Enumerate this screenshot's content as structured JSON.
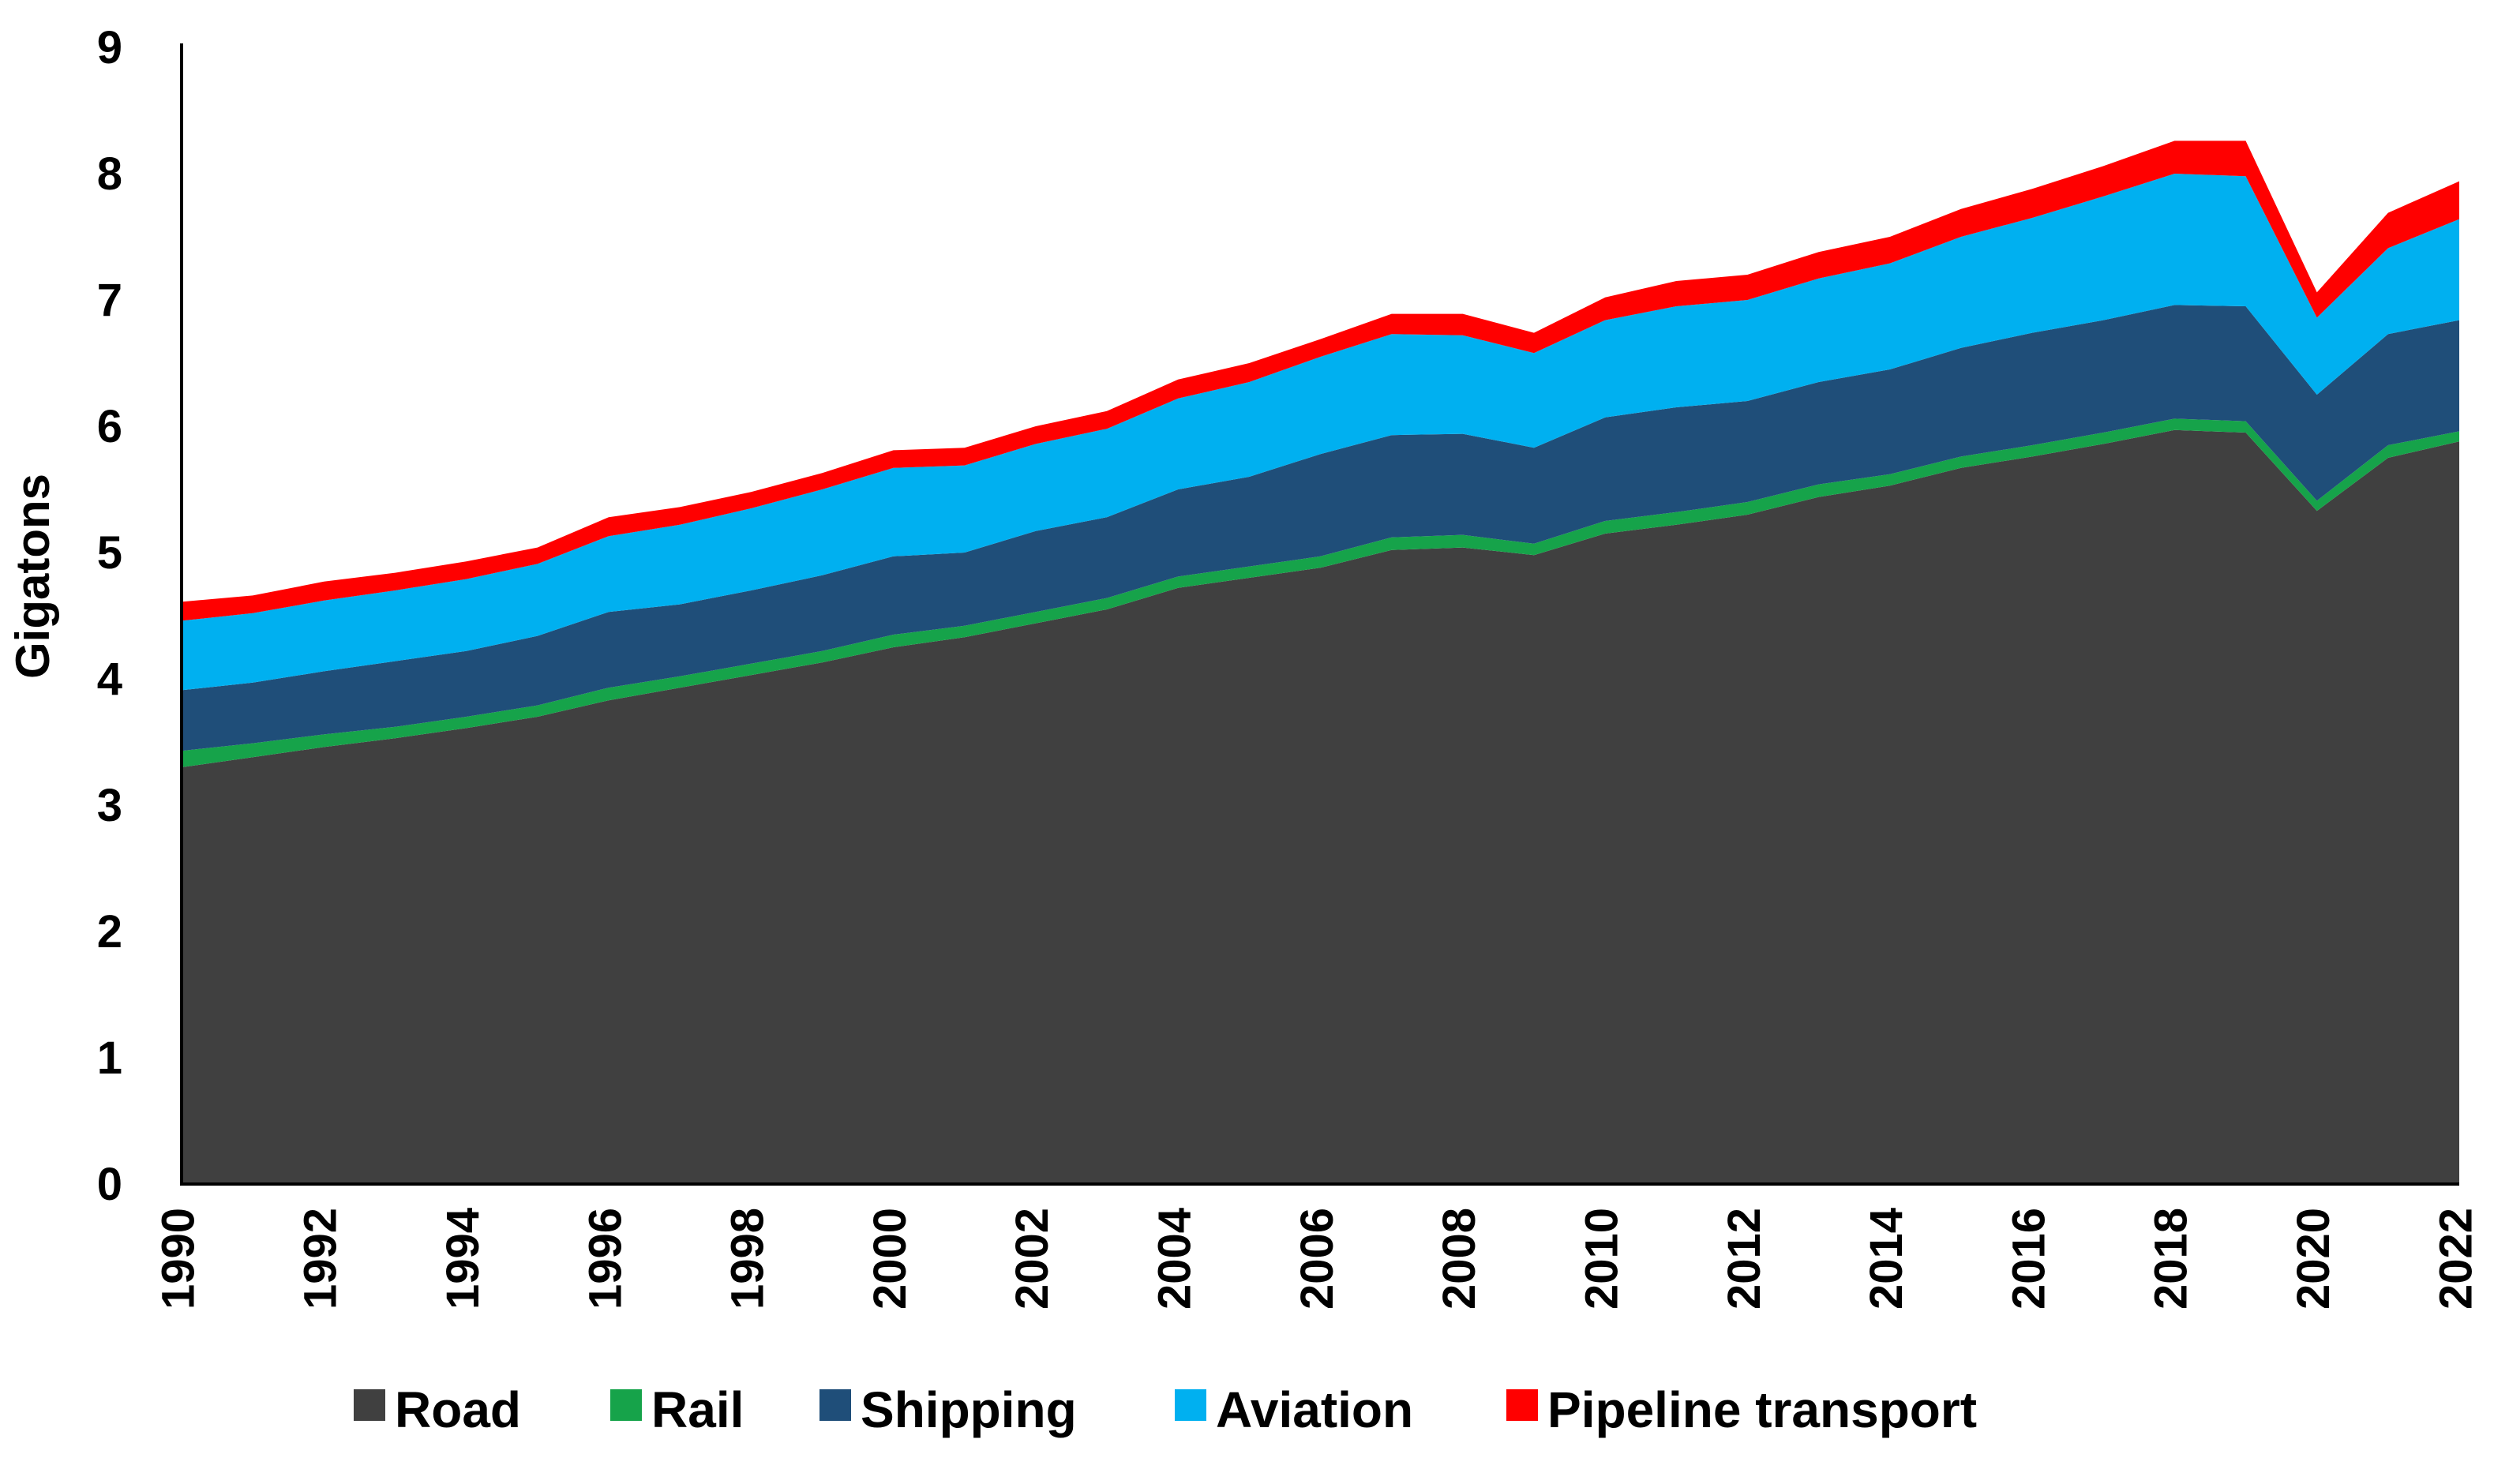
{
  "chart_data": {
    "type": "area",
    "stacked": true,
    "title": "",
    "xlabel": "",
    "ylabel": "Gigatons",
    "ylim": [
      0,
      9
    ],
    "yticks": [
      "0",
      "1",
      "2",
      "3",
      "4",
      "5",
      "6",
      "7",
      "8",
      "9"
    ],
    "xticks": [
      "1990",
      "1992",
      "1994",
      "1996",
      "1998",
      "2000",
      "2002",
      "2004",
      "2006",
      "2008",
      "2010",
      "2012",
      "2014",
      "2016",
      "2018",
      "2020",
      "2022"
    ],
    "x": [
      1990,
      1991,
      1992,
      1993,
      1994,
      1995,
      1996,
      1997,
      1998,
      1999,
      2000,
      2001,
      2002,
      2003,
      2004,
      2005,
      2006,
      2007,
      2008,
      2009,
      2010,
      2011,
      2012,
      2013,
      2014,
      2015,
      2016,
      2017,
      2018,
      2019,
      2020,
      2021,
      2022
    ],
    "grid": false,
    "legend_position": "bottom",
    "series": [
      {
        "name": "Road",
        "color": "#404040",
        "values": [
          3.3,
          3.38,
          3.46,
          3.53,
          3.61,
          3.7,
          3.83,
          3.93,
          4.03,
          4.13,
          4.25,
          4.33,
          4.44,
          4.55,
          4.72,
          4.8,
          4.88,
          5.02,
          5.04,
          4.98,
          5.15,
          5.22,
          5.3,
          5.44,
          5.53,
          5.67,
          5.76,
          5.86,
          5.97,
          5.95,
          5.33,
          5.75,
          5.88
        ]
      },
      {
        "name": "Rail",
        "color": "#16a34a",
        "values": [
          0.13,
          0.11,
          0.1,
          0.09,
          0.09,
          0.09,
          0.1,
          0.09,
          0.09,
          0.09,
          0.1,
          0.09,
          0.09,
          0.09,
          0.09,
          0.09,
          0.09,
          0.1,
          0.1,
          0.09,
          0.1,
          0.1,
          0.1,
          0.1,
          0.09,
          0.09,
          0.09,
          0.09,
          0.09,
          0.09,
          0.08,
          0.1,
          0.08
        ]
      },
      {
        "name": "Shipping",
        "color": "#1f4e79",
        "values": [
          0.48,
          0.48,
          0.5,
          0.52,
          0.52,
          0.55,
          0.6,
          0.57,
          0.58,
          0.6,
          0.62,
          0.58,
          0.64,
          0.64,
          0.69,
          0.71,
          0.81,
          0.81,
          0.8,
          0.76,
          0.82,
          0.83,
          0.8,
          0.81,
          0.83,
          0.86,
          0.89,
          0.89,
          0.9,
          0.91,
          0.84,
          0.88,
          0.88
        ]
      },
      {
        "name": "Aviation",
        "color": "#00b0f0",
        "values": [
          0.55,
          0.55,
          0.56,
          0.56,
          0.57,
          0.57,
          0.6,
          0.63,
          0.65,
          0.68,
          0.7,
          0.69,
          0.69,
          0.7,
          0.72,
          0.75,
          0.77,
          0.8,
          0.78,
          0.75,
          0.77,
          0.8,
          0.8,
          0.82,
          0.84,
          0.88,
          0.91,
          0.98,
          1.04,
          1.03,
          0.61,
          0.68,
          0.8
        ]
      },
      {
        "name": "Pipeline transport",
        "color": "#ff0000",
        "values": [
          0.15,
          0.14,
          0.15,
          0.14,
          0.14,
          0.13,
          0.15,
          0.14,
          0.13,
          0.13,
          0.14,
          0.14,
          0.14,
          0.14,
          0.15,
          0.15,
          0.14,
          0.16,
          0.17,
          0.16,
          0.18,
          0.2,
          0.2,
          0.21,
          0.21,
          0.22,
          0.23,
          0.24,
          0.26,
          0.28,
          0.2,
          0.28,
          0.3
        ]
      }
    ]
  }
}
